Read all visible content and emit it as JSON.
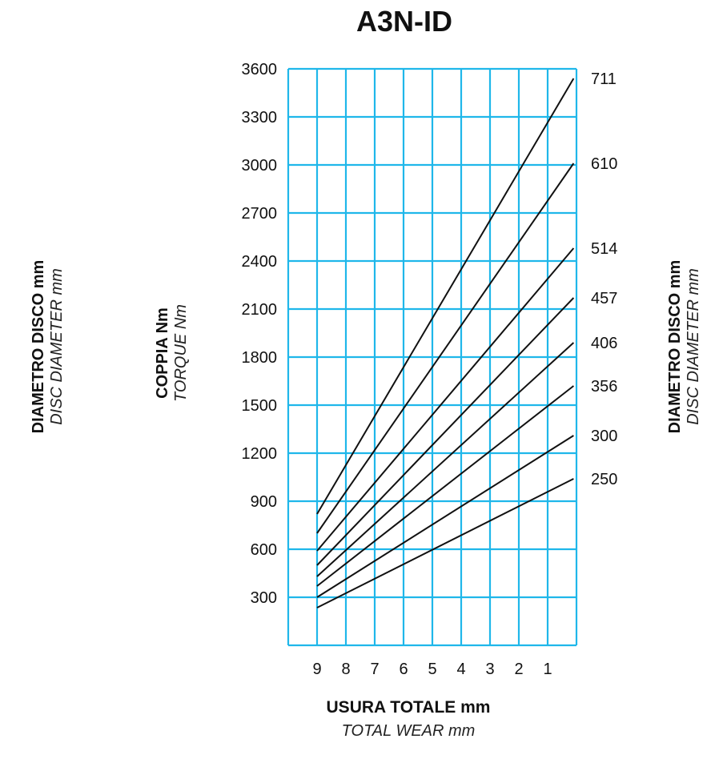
{
  "chart_data": {
    "type": "line",
    "title": "A3N-ID",
    "xlabel": "USURA TOTALE mm",
    "xlabel_en": "TOTAL WEAR mm",
    "ylabel": "COPPIA Nm",
    "ylabel_en": "TORQUE Nm",
    "side_label": "DIAMETRO DISCO mm",
    "side_label_en": "DISC DIAMETER mm",
    "x_ticks": [
      "9",
      "8",
      "7",
      "6",
      "5",
      "4",
      "3",
      "2",
      "1"
    ],
    "y_ticks": [
      "300",
      "600",
      "900",
      "1200",
      "1500",
      "1800",
      "2100",
      "2400",
      "2700",
      "3000",
      "3300",
      "3600"
    ],
    "xlim": [
      10,
      0
    ],
    "ylim": [
      0,
      3600
    ],
    "grid": true,
    "series": [
      {
        "name": "711",
        "x": [
          9,
          0.1
        ],
        "y": [
          820,
          3540
        ]
      },
      {
        "name": "610",
        "x": [
          9,
          0.1
        ],
        "y": [
          700,
          3010
        ]
      },
      {
        "name": "514",
        "x": [
          9,
          0.1
        ],
        "y": [
          590,
          2480
        ]
      },
      {
        "name": "457",
        "x": [
          9,
          0.1
        ],
        "y": [
          500,
          2170
        ]
      },
      {
        "name": "406",
        "x": [
          9,
          0.1
        ],
        "y": [
          430,
          1890
        ]
      },
      {
        "name": "356",
        "x": [
          9,
          0.1
        ],
        "y": [
          370,
          1620
        ]
      },
      {
        "name": "300",
        "x": [
          9,
          0.1
        ],
        "y": [
          300,
          1310
        ]
      },
      {
        "name": "250",
        "x": [
          9,
          0.1
        ],
        "y": [
          235,
          1040
        ]
      }
    ]
  },
  "colors": {
    "grid": "#1fb7ea",
    "line": "#111111"
  }
}
